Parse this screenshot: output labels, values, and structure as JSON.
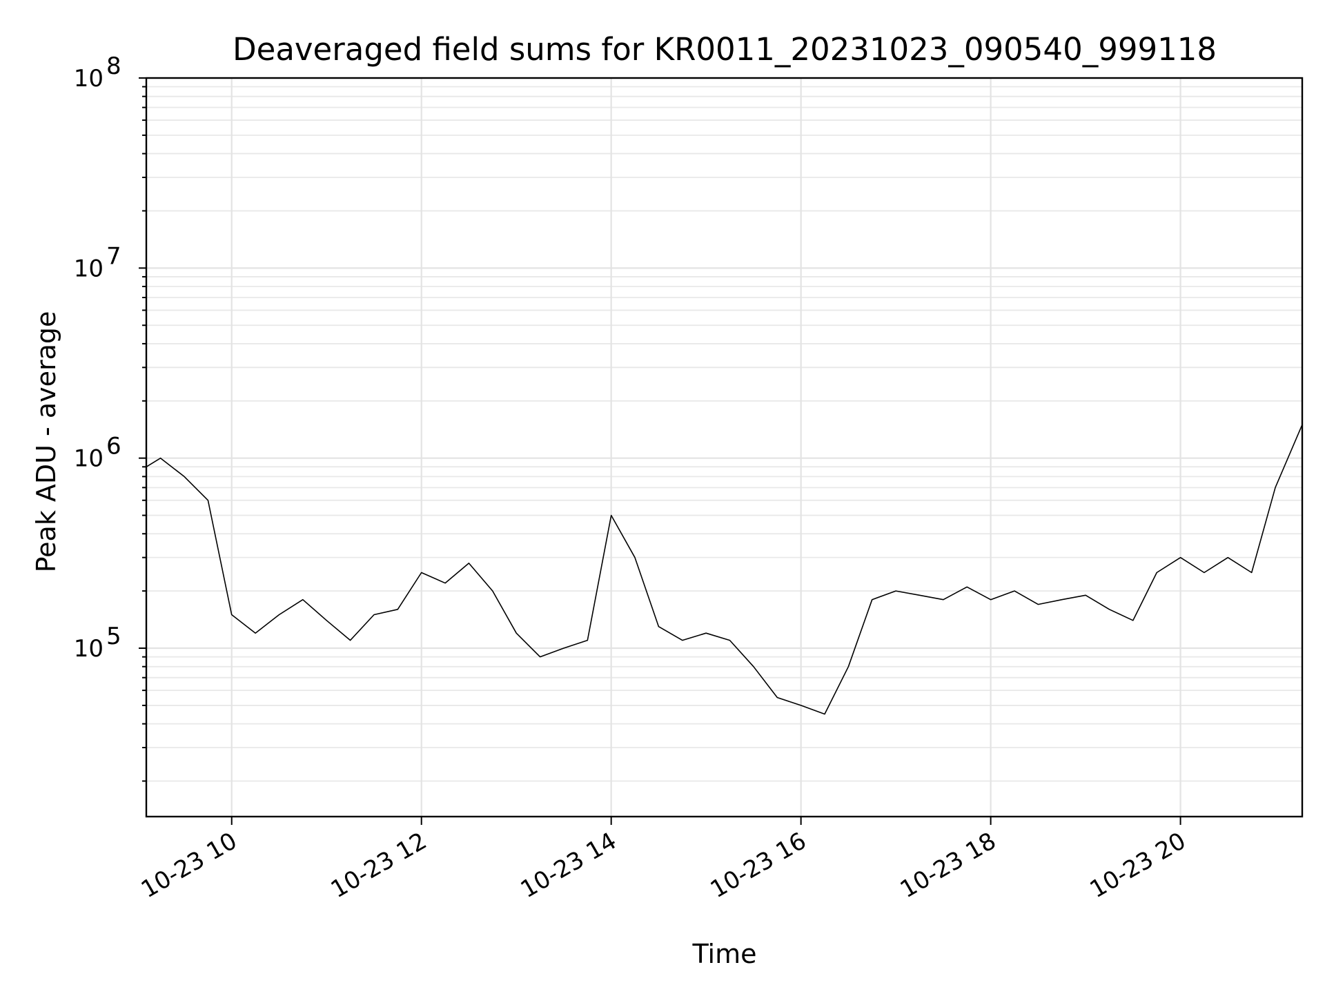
{
  "chart_data": {
    "type": "line",
    "title": "Deaveraged field sums for KR0011_20231023_090540_999118",
    "xlabel": "Time",
    "ylabel": "Peak ADU - average",
    "yscale": "log",
    "xlim": [
      "2023-10-23 09:06",
      "2023-10-23 21:17"
    ],
    "ylim": [
      13000,
      100000000
    ],
    "x_ticks": [
      "2023-10-23 10:00",
      "2023-10-23 12:00",
      "2023-10-23 14:00",
      "2023-10-23 16:00",
      "2023-10-23 18:00",
      "2023-10-23 20:00"
    ],
    "x_tick_labels": [
      "10-23 10",
      "10-23 12",
      "10-23 14",
      "10-23 16",
      "10-23 18",
      "10-23 20"
    ],
    "y_ticks": [
      100000,
      1000000,
      10000000,
      100000000
    ],
    "y_tick_labels": [
      {
        "base": "10",
        "exp": "5"
      },
      {
        "base": "10",
        "exp": "6"
      },
      {
        "base": "10",
        "exp": "7"
      },
      {
        "base": "10",
        "exp": "8"
      }
    ],
    "grid": true,
    "line_color": "#000000",
    "series": [
      {
        "x": [
          "2023-10-23 09:06",
          "2023-10-23 09:15",
          "2023-10-23 09:30",
          "2023-10-23 09:45",
          "2023-10-23 10:00",
          "2023-10-23 10:15",
          "2023-10-23 10:30",
          "2023-10-23 10:45",
          "2023-10-23 11:00",
          "2023-10-23 11:15",
          "2023-10-23 11:30",
          "2023-10-23 11:45",
          "2023-10-23 12:00",
          "2023-10-23 12:15",
          "2023-10-23 12:30",
          "2023-10-23 12:45",
          "2023-10-23 13:00",
          "2023-10-23 13:15",
          "2023-10-23 13:30",
          "2023-10-23 13:45",
          "2023-10-23 14:00",
          "2023-10-23 14:15",
          "2023-10-23 14:30",
          "2023-10-23 14:45",
          "2023-10-23 15:00",
          "2023-10-23 15:15",
          "2023-10-23 15:30",
          "2023-10-23 15:45",
          "2023-10-23 16:00",
          "2023-10-23 16:15",
          "2023-10-23 16:30",
          "2023-10-23 16:45",
          "2023-10-23 17:00",
          "2023-10-23 17:15",
          "2023-10-23 17:30",
          "2023-10-23 17:45",
          "2023-10-23 18:00",
          "2023-10-23 18:15",
          "2023-10-23 18:30",
          "2023-10-23 18:45",
          "2023-10-23 19:00",
          "2023-10-23 19:15",
          "2023-10-23 19:30",
          "2023-10-23 19:45",
          "2023-10-23 20:00",
          "2023-10-23 20:15",
          "2023-10-23 20:30",
          "2023-10-23 20:45",
          "2023-10-23 21:00",
          "2023-10-23 21:17"
        ],
        "y": [
          900000,
          1000000,
          800000,
          600000,
          150000,
          120000,
          150000,
          180000,
          140000,
          110000,
          150000,
          160000,
          250000,
          220000,
          280000,
          200000,
          120000,
          90000,
          100000,
          110000,
          500000,
          300000,
          130000,
          110000,
          120000,
          110000,
          80000,
          55000,
          50000,
          45000,
          80000,
          180000,
          200000,
          190000,
          180000,
          210000,
          180000,
          200000,
          170000,
          180000,
          190000,
          160000,
          140000,
          250000,
          300000,
          250000,
          300000,
          250000,
          700000,
          1500000
        ]
      }
    ]
  }
}
